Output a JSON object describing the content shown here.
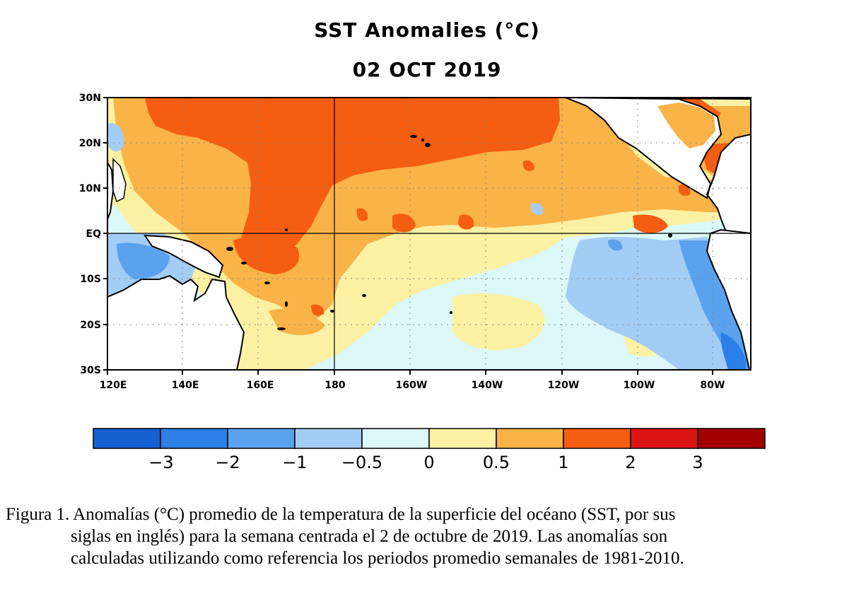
{
  "map": {
    "title": "SST Anomalies (°C)",
    "subtitle": "02 OCT 2019",
    "lat_ticks": [
      "30N",
      "20N",
      "10N",
      "EQ",
      "10S",
      "20S",
      "30S"
    ],
    "lon_ticks": [
      "120E",
      "140E",
      "160E",
      "180",
      "160W",
      "140W",
      "120W",
      "100W",
      "80W"
    ],
    "lat_range": [
      -30,
      30
    ],
    "lon_range_east": [
      120,
      290
    ],
    "grid": "dotted",
    "colors": {
      "land": "#ffffff",
      "coast": "#000000",
      "bins": [
        "#1560d0",
        "#2b7fe6",
        "#5aa1ee",
        "#a4cdf5",
        "#dcf8f8",
        "#fdf1a4",
        "#f9b347",
        "#f55d10",
        "#dc1414",
        "#a00000"
      ]
    }
  },
  "colorbar": {
    "labels": [
      "−3",
      "−2",
      "−1",
      "−0.5",
      "0",
      "0.5",
      "1",
      "2",
      "3"
    ]
  },
  "caption": {
    "line1": "Figura 1. Anomalías (°C) promedio de la temperatura de la superficie del océano (SST, por sus",
    "line2": "siglas en inglés) para la semana centrada el 2 de octubre de 2019. Las anomalías son",
    "line3": "calculadas utilizando como referencia los periodos promedio semanales de 1981-2010."
  }
}
